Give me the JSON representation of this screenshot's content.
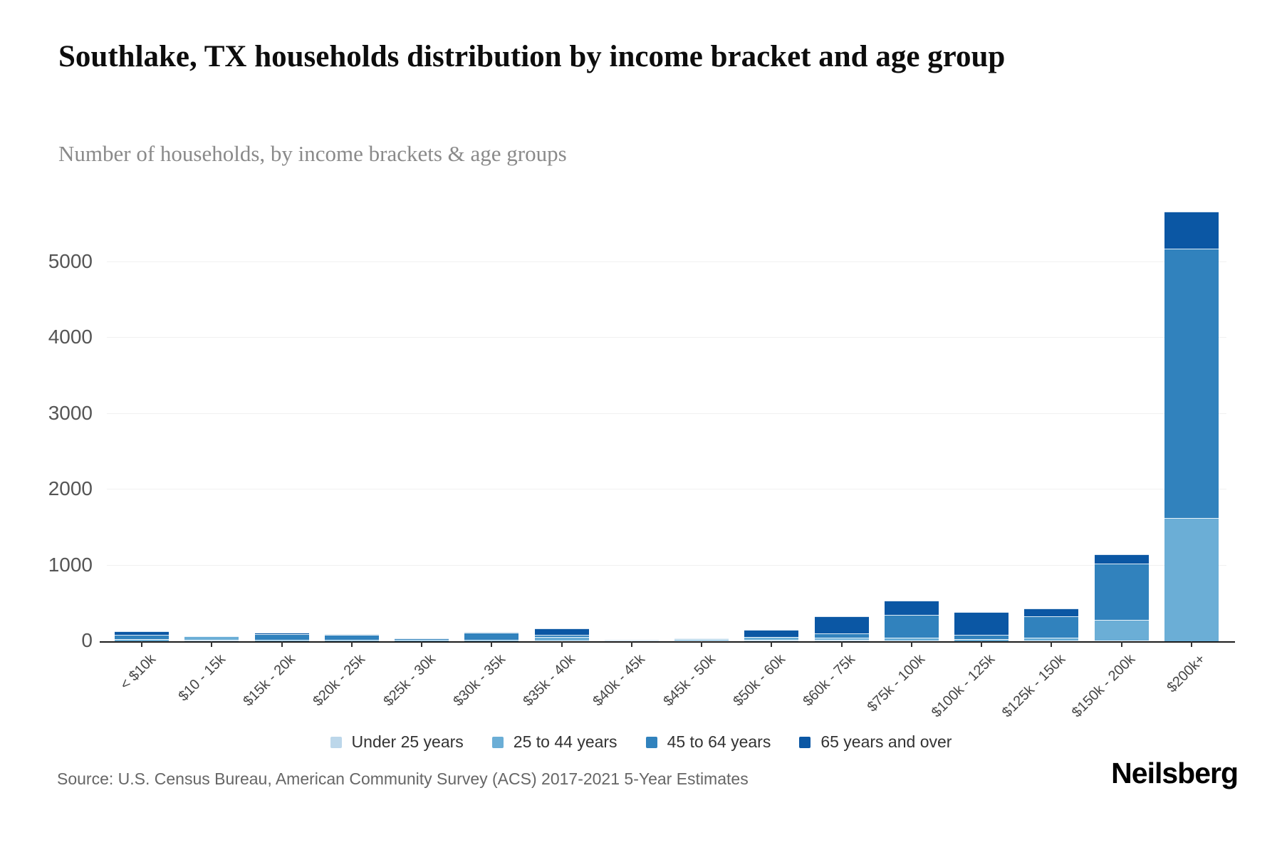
{
  "header": {
    "title": "Southlake, TX households distribution by income bracket and age group",
    "subtitle": "Number of households, by income brackets & age groups"
  },
  "footer": {
    "source": "Source: U.S. Census Bureau, American Community Survey (ACS) 2017-2021 5-Year Estimates",
    "brand": "Neilsberg"
  },
  "colors": {
    "axis": "#1c1c1c",
    "gridline": "#f1f1f1",
    "tick_label": "#555555",
    "subtitle_gray": "#8a8a8a"
  },
  "chart_data": {
    "type": "bar",
    "stacked": true,
    "grid": "horizontal",
    "legend_position": "bottom",
    "title": "Southlake, TX households distribution by income bracket and age group",
    "subtitle": "Number of households, by income brackets & age groups",
    "xlabel": "",
    "ylabel": "",
    "ylim": [
      0,
      6000
    ],
    "yticks": [
      0,
      1000,
      2000,
      3000,
      4000,
      5000
    ],
    "categories": [
      "< $10k",
      "$10 - 15k",
      "$15k - 20k",
      "$20k - 25k",
      "$25k - 30k",
      "$30k - 35k",
      "$35k - 40k",
      "$40k - 45k",
      "$45k - 50k",
      "$50k - 60k",
      "$60k - 75k",
      "$75k - 100k",
      "$100k - 125k",
      "$125k - 150k",
      "$150k - 200k",
      "$200k+"
    ],
    "series": [
      {
        "name": "Under 25 years",
        "color": "#bcd7ea",
        "values": [
          0,
          15,
          0,
          0,
          0,
          0,
          10,
          0,
          10,
          15,
          20,
          10,
          0,
          10,
          10,
          0
        ]
      },
      {
        "name": "25 to 44 years",
        "color": "#6baed6",
        "values": [
          25,
          50,
          20,
          20,
          20,
          15,
          45,
          10,
          15,
          40,
          30,
          40,
          30,
          40,
          275,
          1620
        ]
      },
      {
        "name": "45 to 64 years",
        "color": "#3182bd",
        "values": [
          60,
          0,
          75,
          65,
          18,
          95,
          30,
          10,
          13,
          0,
          55,
          300,
          55,
          275,
          740,
          3555
        ]
      },
      {
        "name": "65 years and over",
        "color": "#0b57a4",
        "values": [
          50,
          0,
          20,
          10,
          0,
          13,
          85,
          0,
          0,
          95,
          225,
          190,
          300,
          110,
          120,
          490
        ]
      }
    ],
    "totals": [
      135,
      65,
      115,
      95,
      38,
      123,
      170,
      20,
      38,
      150,
      330,
      540,
      385,
      435,
      1145,
      5665
    ]
  }
}
